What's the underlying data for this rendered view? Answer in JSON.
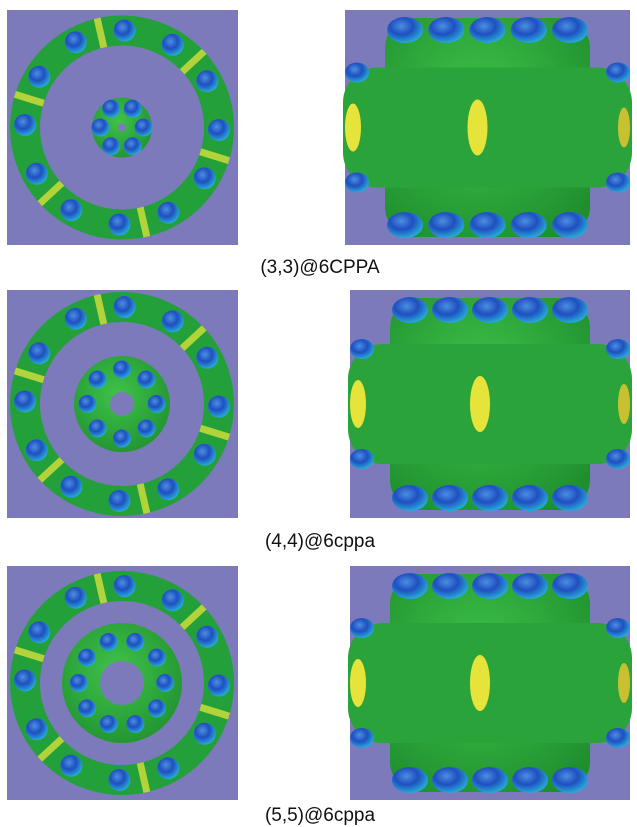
{
  "panels": [
    {
      "caption": "(3,3)@6CPPA"
    },
    {
      "caption": "(4,4)@6cppa"
    },
    {
      "caption": "(5,5)@6cppa"
    }
  ]
}
